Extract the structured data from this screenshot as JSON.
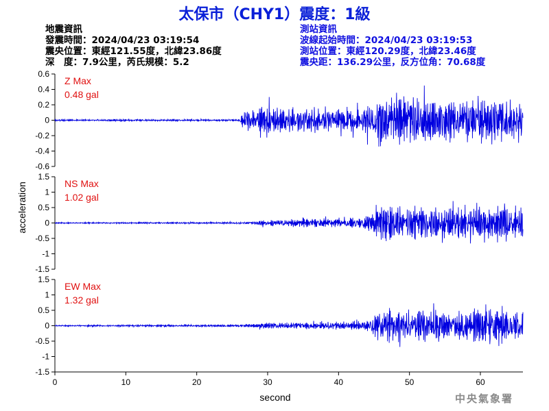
{
  "title": "太保市（CHY1）震度：1級",
  "quake_info": {
    "heading": "地震資訊",
    "time": "發震時間：2024/04/23 03:19:54",
    "location": "震央位置：東經121.55度，北緯23.86度",
    "depth_magnitude": "深　度：7.9公里，芮氏規模：5.2"
  },
  "station_info": {
    "heading": "測站資訊",
    "onset": "波線起始時間：2024/04/23 03:19:53",
    "location": "測站位置：東經120.29度，北緯23.46度",
    "distance": "震央距：136.29公里，反方位角：70.68度"
  },
  "credit": "中央氣象署",
  "chart_data": {
    "type": "line",
    "xlabel": "second",
    "ylabel": "acceleration",
    "xlim": [
      0,
      66
    ],
    "x_ticks": [
      0,
      10,
      20,
      30,
      40,
      50,
      60
    ],
    "series_color": "#0000e0",
    "panels": [
      {
        "name": "Z",
        "max_label": "Z Max",
        "max_value": "0.48 gal",
        "ylim": [
          -0.6,
          0.6
        ],
        "y_ticks": [
          0.6,
          0.4,
          0.2,
          0,
          -0.2,
          -0.4,
          -0.6
        ],
        "y_tick_labels": [
          "0.6",
          "0.4",
          "0.2",
          "0",
          "-0.2",
          "-0.4",
          "-0.6"
        ],
        "envelope": [
          [
            0,
            0.012
          ],
          [
            26,
            0.012
          ],
          [
            26.5,
            0.1
          ],
          [
            30,
            0.18
          ],
          [
            40,
            0.15
          ],
          [
            44,
            0.18
          ],
          [
            46,
            0.32
          ],
          [
            50,
            0.3
          ],
          [
            56,
            0.28
          ],
          [
            62,
            0.3
          ],
          [
            66,
            0.26
          ]
        ],
        "noise_seed": 3
      },
      {
        "name": "NS",
        "max_label": "NS Max",
        "max_value": "1.02 gal",
        "ylim": [
          -1.5,
          1.5
        ],
        "y_ticks": [
          1.5,
          1,
          0.5,
          0,
          -0.5,
          -1,
          -1.5
        ],
        "y_tick_labels": [
          "1.5",
          "1",
          "0.5",
          "0",
          "-0.5",
          "-1",
          "-1.5"
        ],
        "envelope": [
          [
            0,
            0.02
          ],
          [
            27,
            0.03
          ],
          [
            30,
            0.1
          ],
          [
            40,
            0.15
          ],
          [
            44,
            0.2
          ],
          [
            46,
            0.6
          ],
          [
            50,
            0.5
          ],
          [
            56,
            0.45
          ],
          [
            62,
            0.55
          ],
          [
            66,
            0.5
          ]
        ],
        "noise_seed": 11
      },
      {
        "name": "EW",
        "max_label": "EW Max",
        "max_value": "1.32 gal",
        "ylim": [
          -1.5,
          1.5
        ],
        "y_ticks": [
          1.5,
          1,
          0.5,
          0,
          -0.5,
          -1,
          -1.5
        ],
        "y_tick_labels": [
          "1.5",
          "1",
          "0.5",
          "0",
          "-0.5",
          "-1",
          "-1.5"
        ],
        "envelope": [
          [
            0,
            0.02
          ],
          [
            27,
            0.04
          ],
          [
            30,
            0.1
          ],
          [
            40,
            0.12
          ],
          [
            44,
            0.18
          ],
          [
            46,
            0.55
          ],
          [
            50,
            0.5
          ],
          [
            56,
            0.45
          ],
          [
            62,
            0.6
          ],
          [
            66,
            0.5
          ]
        ],
        "noise_seed": 29
      }
    ]
  }
}
